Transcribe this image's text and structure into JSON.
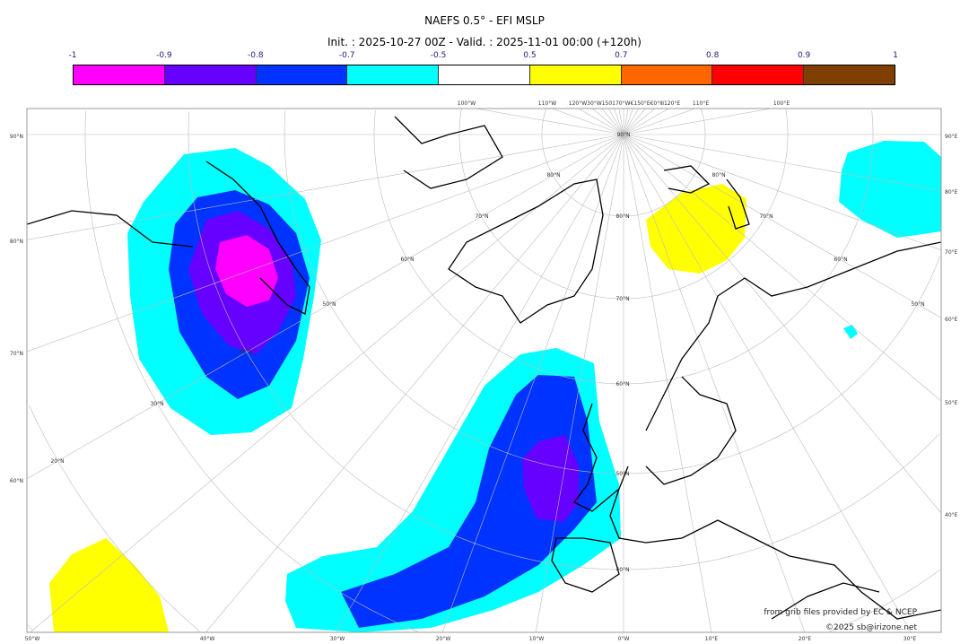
{
  "title": "NAEFS 0.5° - EFI MSLP",
  "subtitle": "Init. : 2025-10-27 00Z - Valid. : 2025-11-01 00:00 (+120h)",
  "colorbar": {
    "ticks": [
      "-1",
      "-0.9",
      "-0.8",
      "-0.7",
      "-0.5",
      "0.5",
      "0.7",
      "0.8",
      "0.9",
      "1"
    ],
    "colors": [
      "#ff00ff",
      "#6600ff",
      "#0033ff",
      "#00ffff",
      "#ffffff",
      "#ffff00",
      "#ff6600",
      "#ff0000",
      "#7f3f00"
    ]
  },
  "map": {
    "left_labels": [
      "90°N",
      "80°N",
      "70°N",
      "60°N"
    ],
    "right_labels": [
      "90°E",
      "80°E",
      "70°E",
      "60°E",
      "50°E",
      "40°E"
    ],
    "bottom_labels": [
      "50°W",
      "40°W",
      "30°W",
      "20°W",
      "10°W",
      "0°W",
      "10°E",
      "20°E",
      "30°E"
    ],
    "top_labels": [
      "100°W",
      "110°W",
      "120°W30°W150170°W€150°E€0°ⅡI120°E",
      "110°E",
      "100°E"
    ],
    "inner_labels": [
      "90°N",
      "80°N",
      "80°N",
      "80°N",
      "70°N",
      "70°N",
      "60°N",
      "60°N",
      "70°N",
      "50°N",
      "50°N",
      "40°N",
      "60°N",
      "30°N",
      "20°N",
      "50°N",
      "40°N"
    ],
    "credit_source": "from grib files provided by EC & NCEP",
    "credit_copyright": "©2025 sb@irizone.net"
  }
}
